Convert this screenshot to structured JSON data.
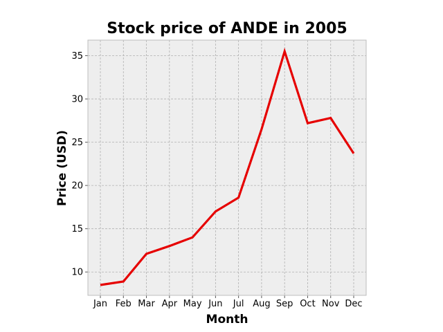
{
  "chart_data": {
    "type": "line",
    "title": "Stock price of ANDE in 2005",
    "xlabel": "Month",
    "ylabel": "Price (USD)",
    "categories": [
      "Jan",
      "Feb",
      "Mar",
      "Apr",
      "May",
      "Jun",
      "Jul",
      "Aug",
      "Sep",
      "Oct",
      "Nov",
      "Dec"
    ],
    "series": [
      {
        "values": [
          8.5,
          8.9,
          12.1,
          13.0,
          14.0,
          17.0,
          18.6,
          26.5,
          35.5,
          27.2,
          27.8,
          23.7
        ]
      }
    ],
    "ylim": [
      7.3,
      36.8
    ],
    "yticks": [
      10,
      15,
      20,
      25,
      30,
      35
    ],
    "grid": true,
    "legend": "none",
    "colors": {
      "line": "#e60000",
      "plot_background": "#eeeeee",
      "grid": "#b0b0b0",
      "frame": "#bcbcbc"
    }
  }
}
